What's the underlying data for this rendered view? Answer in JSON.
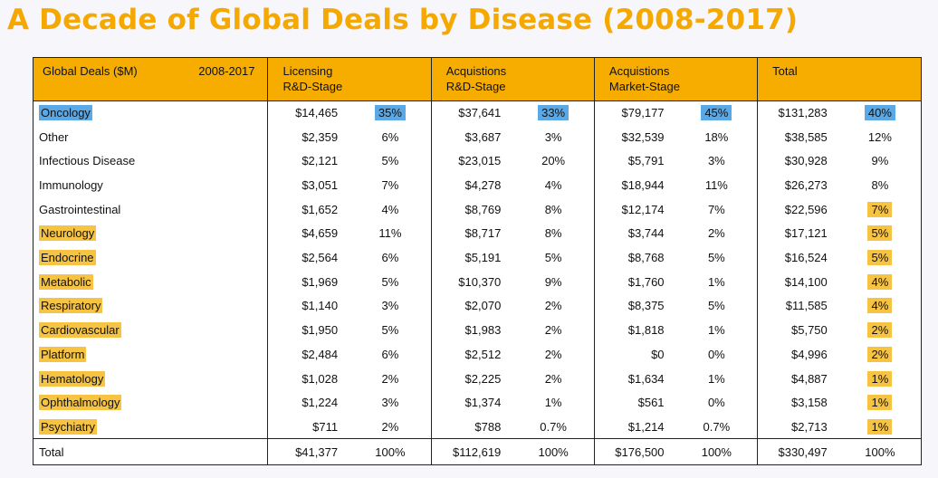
{
  "title": "A Decade of Global Deals by Disease (2008-2017)",
  "colors": {
    "title": "#f5a800",
    "header_bg": "#f6ad00",
    "highlight_blue": "#5aa9e6",
    "highlight_yellow": "#f6c342"
  },
  "header": {
    "label": "Global Deals ($M)",
    "period": "2008-2017",
    "groups": [
      {
        "line1": "Licensing",
        "line2": "R&D-Stage"
      },
      {
        "line1": "Acquistions",
        "line2": "R&D-Stage"
      },
      {
        "line1": "Acquistions",
        "line2": "Market-Stage"
      },
      {
        "line1": "Total",
        "line2": ""
      }
    ]
  },
  "rows": [
    {
      "name": "Oncology",
      "name_hl": "blue",
      "total_pct_hl": "blue",
      "all_pct_hl": "blue",
      "cells": [
        "$14,465",
        "35%",
        "$37,641",
        "33%",
        "$79,177",
        "45%",
        "$131,283",
        "40%"
      ]
    },
    {
      "name": "Other",
      "name_hl": "",
      "total_pct_hl": "",
      "cells": [
        "$2,359",
        "6%",
        "$3,687",
        "3%",
        "$32,539",
        "18%",
        "$38,585",
        "12%"
      ]
    },
    {
      "name": "Infectious Disease",
      "name_hl": "",
      "total_pct_hl": "",
      "cells": [
        "$2,121",
        "5%",
        "$23,015",
        "20%",
        "$5,791",
        "3%",
        "$30,928",
        "9%"
      ]
    },
    {
      "name": "Immunology",
      "name_hl": "",
      "total_pct_hl": "",
      "cells": [
        "$3,051",
        "7%",
        "$4,278",
        "4%",
        "$18,944",
        "11%",
        "$26,273",
        "8%"
      ]
    },
    {
      "name": "Gastrointestinal",
      "name_hl": "",
      "total_pct_hl": "yellow",
      "cells": [
        "$1,652",
        "4%",
        "$8,769",
        "8%",
        "$12,174",
        "7%",
        "$22,596",
        "7%"
      ]
    },
    {
      "name": "Neurology",
      "name_hl": "yellow",
      "total_pct_hl": "yellow",
      "cells": [
        "$4,659",
        "11%",
        "$8,717",
        "8%",
        "$3,744",
        "2%",
        "$17,121",
        "5%"
      ]
    },
    {
      "name": "Endocrine",
      "name_hl": "yellow",
      "total_pct_hl": "yellow",
      "cells": [
        "$2,564",
        "6%",
        "$5,191",
        "5%",
        "$8,768",
        "5%",
        "$16,524",
        "5%"
      ]
    },
    {
      "name": "Metabolic",
      "name_hl": "yellow",
      "total_pct_hl": "yellow",
      "cells": [
        "$1,969",
        "5%",
        "$10,370",
        "9%",
        "$1,760",
        "1%",
        "$14,100",
        "4%"
      ]
    },
    {
      "name": "Respiratory",
      "name_hl": "yellow",
      "total_pct_hl": "yellow",
      "cells": [
        "$1,140",
        "3%",
        "$2,070",
        "2%",
        "$8,375",
        "5%",
        "$11,585",
        "4%"
      ]
    },
    {
      "name": "Cardiovascular",
      "name_hl": "yellow",
      "total_pct_hl": "yellow",
      "cells": [
        "$1,950",
        "5%",
        "$1,983",
        "2%",
        "$1,818",
        "1%",
        "$5,750",
        "2%"
      ]
    },
    {
      "name": "Platform",
      "name_hl": "yellow",
      "total_pct_hl": "yellow",
      "cells": [
        "$2,484",
        "6%",
        "$2,512",
        "2%",
        "$0",
        "0%",
        "$4,996",
        "2%"
      ]
    },
    {
      "name": "Hematology",
      "name_hl": "yellow",
      "total_pct_hl": "yellow",
      "cells": [
        "$1,028",
        "2%",
        "$2,225",
        "2%",
        "$1,634",
        "1%",
        "$4,887",
        "1%"
      ]
    },
    {
      "name": "Ophthalmology",
      "name_hl": "yellow",
      "total_pct_hl": "yellow",
      "cells": [
        "$1,224",
        "3%",
        "$1,374",
        "1%",
        "$561",
        "0%",
        "$3,158",
        "1%"
      ]
    },
    {
      "name": "Psychiatry",
      "name_hl": "yellow",
      "total_pct_hl": "yellow",
      "cells": [
        "$711",
        "2%",
        "$788",
        "0.7%",
        "$1,214",
        "0.7%",
        "$2,713",
        "1%"
      ]
    }
  ],
  "total": {
    "name": "Total",
    "cells": [
      "$41,377",
      "100%",
      "$112,619",
      "100%",
      "$176,500",
      "100%",
      "$330,497",
      "100%"
    ]
  }
}
